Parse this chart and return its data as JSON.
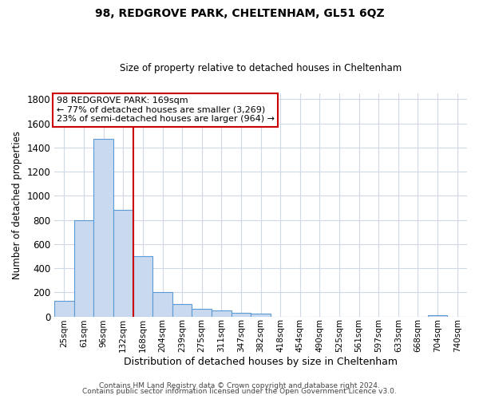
{
  "title": "98, REDGROVE PARK, CHELTENHAM, GL51 6QZ",
  "subtitle": "Size of property relative to detached houses in Cheltenham",
  "xlabel": "Distribution of detached houses by size in Cheltenham",
  "ylabel": "Number of detached properties",
  "bar_color": "#c9d9f0",
  "bar_edge_color": "#5b9bd5",
  "categories": [
    "25sqm",
    "61sqm",
    "96sqm",
    "132sqm",
    "168sqm",
    "204sqm",
    "239sqm",
    "275sqm",
    "311sqm",
    "347sqm",
    "382sqm",
    "418sqm",
    "454sqm",
    "490sqm",
    "525sqm",
    "561sqm",
    "597sqm",
    "633sqm",
    "668sqm",
    "704sqm",
    "740sqm"
  ],
  "values": [
    130,
    800,
    1470,
    880,
    500,
    205,
    105,
    65,
    50,
    33,
    25,
    0,
    0,
    0,
    0,
    0,
    0,
    0,
    0,
    10,
    0
  ],
  "ylim": [
    0,
    1850
  ],
  "yticks": [
    0,
    200,
    400,
    600,
    800,
    1000,
    1200,
    1400,
    1600,
    1800
  ],
  "marker_bin_index": 4,
  "marker_color": "#cc0000",
  "annotation_text_line1": "98 REDGROVE PARK: 169sqm",
  "annotation_text_line2": "← 77% of detached houses are smaller (3,269)",
  "annotation_text_line3": "23% of semi-detached houses are larger (964) →",
  "annotation_box_edge_color": "#cc0000",
  "annotation_box_face_color": "#ffffff",
  "footer_line1": "Contains HM Land Registry data © Crown copyright and database right 2024.",
  "footer_line2": "Contains public sector information licensed under the Open Government Licence v3.0.",
  "background_color": "#ffffff",
  "grid_color": "#d0d8e8"
}
